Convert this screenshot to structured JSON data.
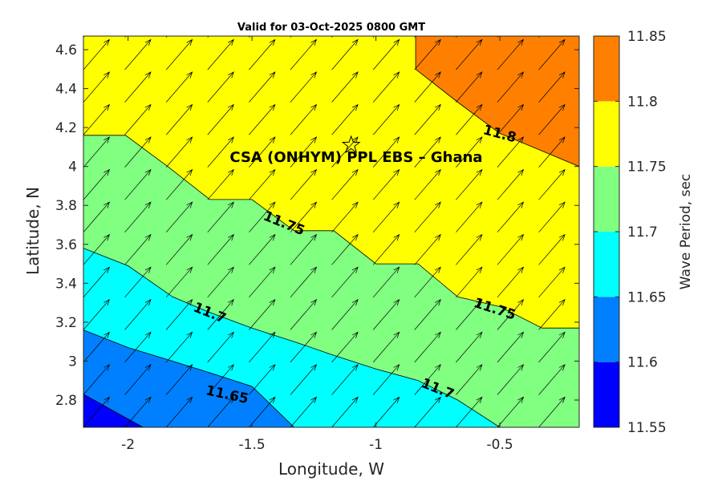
{
  "chart_data": {
    "type": "filled-contour",
    "title": "Valid for 03-Oct-2025 0800 GMT",
    "xlabel": "Longitude, W",
    "ylabel": "Latitude, N",
    "xlim": [
      -2.18,
      -0.18
    ],
    "ylim": [
      2.66,
      4.67
    ],
    "xticks": [
      -2,
      -1.5,
      -1,
      -0.5
    ],
    "xtick_labels": [
      "-2",
      "-1.5",
      "-1",
      "-0.5"
    ],
    "yticks": [
      2.8,
      3,
      3.2,
      3.4,
      3.6,
      3.8,
      4,
      4.2,
      4.4,
      4.6
    ],
    "ytick_labels": [
      "2.8",
      "3",
      "3.2",
      "3.4",
      "3.6",
      "3.8",
      "4",
      "4.2",
      "4.4",
      "4.6"
    ],
    "colorbar": {
      "label": "Wave Period, sec",
      "ticks": [
        "11.55",
        "11.6",
        "11.65",
        "11.7",
        "11.75",
        "11.8",
        "11.85"
      ],
      "bands": [
        {
          "from": 11.55,
          "to": 11.6,
          "color": "#0000ff"
        },
        {
          "from": 11.6,
          "to": 11.65,
          "color": "#0080ff"
        },
        {
          "from": 11.65,
          "to": 11.7,
          "color": "#00ffff"
        },
        {
          "from": 11.7,
          "to": 11.75,
          "color": "#80ff80"
        },
        {
          "from": 11.75,
          "to": 11.8,
          "color": "#ffff00"
        },
        {
          "from": 11.8,
          "to": 11.85,
          "color": "#ff8000"
        }
      ]
    },
    "contours": [
      {
        "level": 11.6,
        "points": [
          [
            -2.18,
            2.83
          ],
          [
            -1.94,
            2.66
          ]
        ]
      },
      {
        "level": 11.65,
        "points": [
          [
            -2.18,
            3.16
          ],
          [
            -2.0,
            3.07
          ],
          [
            -1.82,
            3.0
          ],
          [
            -1.67,
            2.94
          ],
          [
            -1.5,
            2.87
          ],
          [
            -1.33,
            2.66
          ]
        ]
      },
      {
        "level": 11.7,
        "points": [
          [
            -2.18,
            3.58
          ],
          [
            -2.0,
            3.49
          ],
          [
            -1.82,
            3.33
          ],
          [
            -1.67,
            3.25
          ],
          [
            -1.5,
            3.17
          ],
          [
            -1.33,
            3.1
          ],
          [
            -1.17,
            3.03
          ],
          [
            -1.0,
            2.96
          ],
          [
            -0.83,
            2.9
          ],
          [
            -0.67,
            2.8
          ],
          [
            -0.5,
            2.66
          ]
        ]
      },
      {
        "level": 11.75,
        "points": [
          [
            -2.18,
            4.16
          ],
          [
            -2.01,
            4.16
          ],
          [
            -1.84,
            4.0
          ],
          [
            -1.67,
            3.83
          ],
          [
            -1.5,
            3.83
          ],
          [
            -1.33,
            3.67
          ],
          [
            -1.17,
            3.67
          ],
          [
            -1.0,
            3.5
          ],
          [
            -0.83,
            3.5
          ],
          [
            -0.67,
            3.33
          ],
          [
            -0.5,
            3.28
          ],
          [
            -0.33,
            3.17
          ],
          [
            -0.18,
            3.17
          ]
        ]
      },
      {
        "level": 11.8,
        "points": [
          [
            -0.84,
            4.67
          ],
          [
            -0.84,
            4.5
          ],
          [
            -0.67,
            4.33
          ],
          [
            -0.5,
            4.17
          ],
          [
            -0.33,
            4.08
          ],
          [
            -0.18,
            4.0
          ]
        ]
      }
    ],
    "contour_labels": [
      {
        "text": "11.8",
        "x": -0.5,
        "y": 4.17,
        "angle": 15
      },
      {
        "text": "11.75",
        "x": -1.37,
        "y": 3.71,
        "angle": 22
      },
      {
        "text": "11.75",
        "x": -0.52,
        "y": 3.27,
        "angle": 18
      },
      {
        "text": "11.7",
        "x": -1.67,
        "y": 3.25,
        "angle": 22
      },
      {
        "text": "11.7",
        "x": -0.75,
        "y": 2.86,
        "angle": 22
      },
      {
        "text": "11.65",
        "x": -1.6,
        "y": 2.83,
        "angle": 12
      }
    ],
    "vectors": {
      "x_start": -2.18,
      "x_step": 0.167,
      "y_start": 2.66,
      "y_step": 0.167,
      "u": 0.105,
      "v": 0.155
    },
    "site": {
      "label": "CSA (ONHYM) PPL EBS  – Ghana",
      "x": -1.1,
      "y": 4.11
    }
  }
}
